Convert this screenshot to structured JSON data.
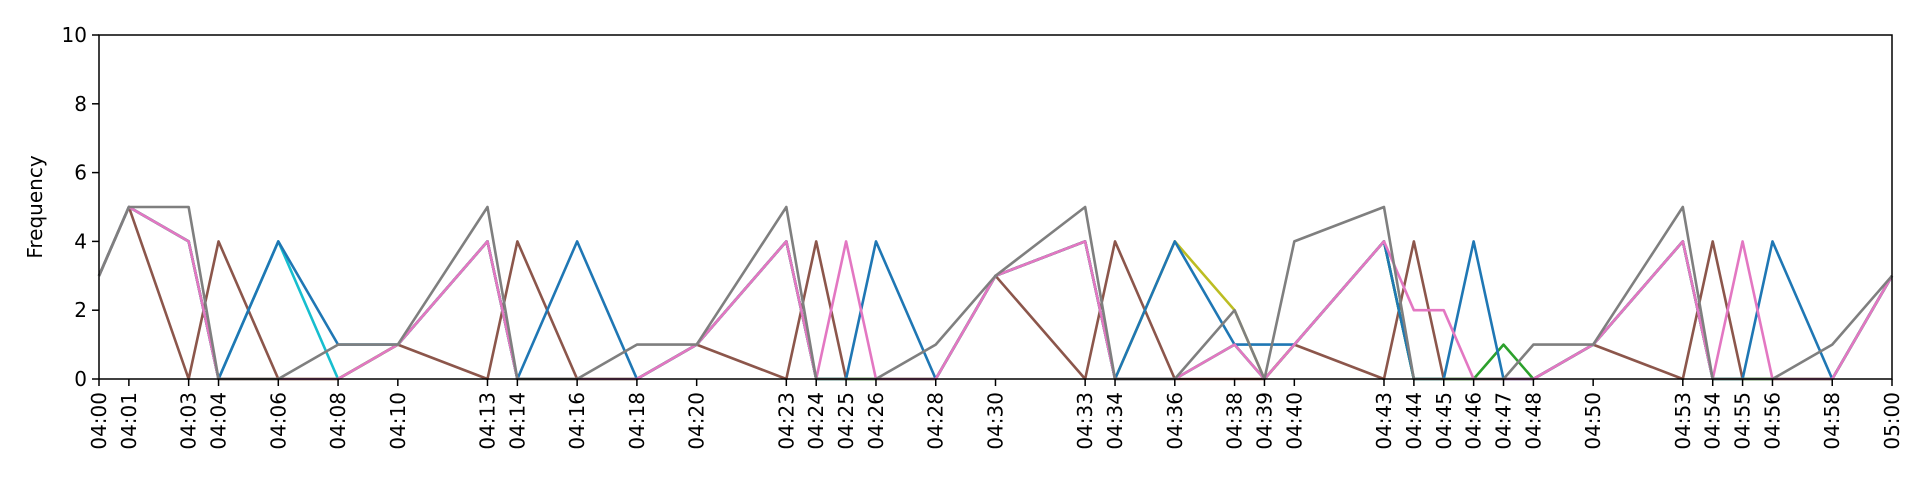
{
  "chart_data": {
    "type": "line",
    "title": "",
    "xlabel": "",
    "ylabel": "Frequency",
    "ylim": [
      0,
      10
    ],
    "yticks": [
      0,
      2,
      4,
      6,
      8,
      10
    ],
    "xlim": [
      "04:00",
      "05:00"
    ],
    "x": [
      "04:00",
      "04:01",
      "04:03",
      "04:04",
      "04:06",
      "04:08",
      "04:10",
      "04:13",
      "04:14",
      "04:16",
      "04:18",
      "04:20",
      "04:23",
      "04:24",
      "04:25",
      "04:26",
      "04:28",
      "04:30",
      "04:33",
      "04:34",
      "04:36",
      "04:38",
      "04:39",
      "04:40",
      "04:43",
      "04:44",
      "04:45",
      "04:46",
      "04:47",
      "04:48",
      "04:50",
      "04:53",
      "04:54",
      "04:55",
      "04:56",
      "04:58",
      "05:00"
    ],
    "grid": false,
    "legend": "none",
    "series": [
      {
        "color": "#8c564b",
        "values": [
          3,
          5,
          0,
          4,
          0,
          0,
          1,
          0,
          4,
          0,
          0,
          1,
          0,
          4,
          0,
          0,
          0,
          3,
          0,
          4,
          0,
          0,
          0,
          1,
          0,
          4,
          0,
          0,
          0,
          0,
          1,
          0,
          4,
          0,
          0,
          0,
          3
        ]
      },
      {
        "color": "#17becf",
        "values": [
          3,
          5,
          4,
          0,
          4,
          0,
          1,
          4,
          0,
          0,
          0,
          1,
          4,
          0,
          0,
          0,
          0,
          3,
          4,
          0,
          0,
          1,
          0,
          1,
          4,
          0,
          0,
          0,
          0,
          0,
          1,
          4,
          0,
          0,
          0,
          0,
          3
        ]
      },
      {
        "color": "#bcbd22",
        "values": [
          3,
          5,
          4,
          0,
          0,
          0,
          1,
          4,
          0,
          0,
          0,
          1,
          4,
          0,
          0,
          0,
          0,
          3,
          4,
          0,
          4,
          2,
          0,
          1,
          4,
          0,
          0,
          0,
          0,
          0,
          1,
          4,
          0,
          0,
          0,
          0,
          3
        ]
      },
      {
        "color": "#2ca02c",
        "values": [
          3,
          5,
          4,
          0,
          0,
          0,
          1,
          4,
          0,
          0,
          0,
          1,
          4,
          0,
          0,
          0,
          0,
          3,
          4,
          0,
          0,
          1,
          0,
          1,
          4,
          0,
          0,
          0,
          1,
          0,
          1,
          4,
          0,
          0,
          0,
          0,
          3
        ]
      },
      {
        "color": "#1f77b4",
        "values": [
          3,
          5,
          4,
          0,
          4,
          1,
          1,
          4,
          0,
          4,
          0,
          1,
          4,
          0,
          0,
          4,
          0,
          3,
          4,
          0,
          4,
          1,
          1,
          1,
          4,
          0,
          0,
          4,
          0,
          0,
          1,
          4,
          0,
          0,
          4,
          0,
          3
        ]
      },
      {
        "color": "#e377c2",
        "values": [
          3,
          5,
          4,
          0,
          0,
          0,
          1,
          4,
          0,
          0,
          0,
          1,
          4,
          0,
          4,
          0,
          0,
          3,
          4,
          0,
          0,
          1,
          0,
          1,
          4,
          2,
          2,
          0,
          0,
          0,
          1,
          4,
          0,
          4,
          0,
          0,
          3
        ]
      },
      {
        "color": "#7f7f7f",
        "values": [
          3,
          5,
          5,
          0,
          0,
          1,
          1,
          5,
          0,
          0,
          1,
          1,
          5,
          0,
          0,
          0,
          1,
          3,
          5,
          0,
          0,
          2,
          0,
          4,
          5,
          0,
          0,
          0,
          0,
          1,
          1,
          5,
          0,
          0,
          0,
          1,
          3
        ]
      }
    ]
  }
}
